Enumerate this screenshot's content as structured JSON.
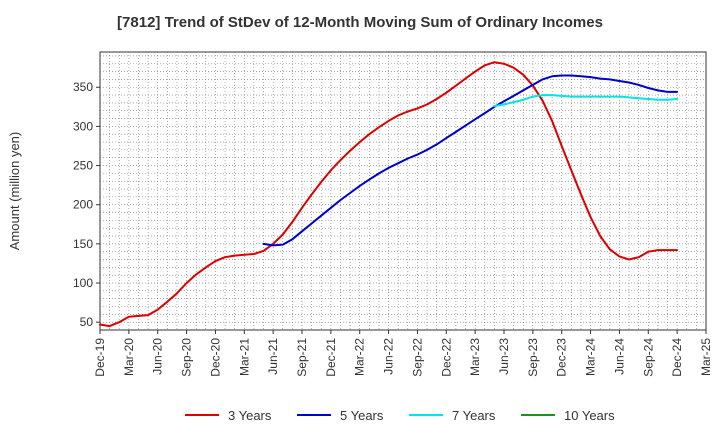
{
  "chart_data": {
    "type": "line",
    "title": "[7812]  Trend of StDev of 12-Month Moving Sum of Ordinary Incomes",
    "xlabel": "",
    "ylabel": "Amount (million yen)",
    "ylim": [
      40,
      395
    ],
    "yticks": [
      50,
      100,
      150,
      200,
      250,
      300,
      350
    ],
    "xlim": [
      "2019-12",
      "2025-03"
    ],
    "x_tick_labels": [
      "Dec-19",
      "Mar-20",
      "Jun-20",
      "Sep-20",
      "Dec-20",
      "Mar-21",
      "Jun-21",
      "Sep-21",
      "Dec-21",
      "Mar-22",
      "Jun-22",
      "Sep-22",
      "Dec-22",
      "Mar-23",
      "Jun-23",
      "Sep-23",
      "Dec-23",
      "Mar-24",
      "Jun-24",
      "Sep-24",
      "Dec-24",
      "Mar-25"
    ],
    "grid": true,
    "legend_position": "bottom",
    "series": [
      {
        "name": "3 Years",
        "color": "#dd0000",
        "points": [
          [
            "2019-12",
            47
          ],
          [
            "2020-01",
            45
          ],
          [
            "2020-02",
            50
          ],
          [
            "2020-03",
            57
          ],
          [
            "2020-04",
            58
          ],
          [
            "2020-05",
            59
          ],
          [
            "2020-06",
            66
          ],
          [
            "2020-07",
            76
          ],
          [
            "2020-08",
            87
          ],
          [
            "2020-09",
            100
          ],
          [
            "2020-10",
            111
          ],
          [
            "2020-11",
            120
          ],
          [
            "2020-12",
            128
          ],
          [
            "2021-01",
            133
          ],
          [
            "2021-02",
            135
          ],
          [
            "2021-03",
            136
          ],
          [
            "2021-04",
            137
          ],
          [
            "2021-05",
            141
          ],
          [
            "2021-06",
            150
          ],
          [
            "2021-07",
            162
          ],
          [
            "2021-08",
            178
          ],
          [
            "2021-09",
            196
          ],
          [
            "2021-10",
            213
          ],
          [
            "2021-11",
            229
          ],
          [
            "2021-12",
            244
          ],
          [
            "2022-01",
            257
          ],
          [
            "2022-02",
            269
          ],
          [
            "2022-03",
            280
          ],
          [
            "2022-04",
            290
          ],
          [
            "2022-05",
            299
          ],
          [
            "2022-06",
            307
          ],
          [
            "2022-07",
            314
          ],
          [
            "2022-08",
            319
          ],
          [
            "2022-09",
            323
          ],
          [
            "2022-10",
            328
          ],
          [
            "2022-11",
            335
          ],
          [
            "2022-12",
            343
          ],
          [
            "2023-01",
            352
          ],
          [
            "2023-02",
            361
          ],
          [
            "2023-03",
            370
          ],
          [
            "2023-04",
            378
          ],
          [
            "2023-05",
            382
          ],
          [
            "2023-06",
            380
          ],
          [
            "2023-07",
            375
          ],
          [
            "2023-08",
            366
          ],
          [
            "2023-09",
            352
          ],
          [
            "2023-10",
            333
          ],
          [
            "2023-11",
            307
          ],
          [
            "2023-12",
            275
          ],
          [
            "2024-01",
            244
          ],
          [
            "2024-02",
            213
          ],
          [
            "2024-03",
            184
          ],
          [
            "2024-04",
            160
          ],
          [
            "2024-05",
            143
          ],
          [
            "2024-06",
            134
          ],
          [
            "2024-07",
            130
          ],
          [
            "2024-08",
            133
          ],
          [
            "2024-09",
            140
          ],
          [
            "2024-10",
            142
          ],
          [
            "2024-11",
            142
          ],
          [
            "2024-12",
            142
          ]
        ]
      },
      {
        "name": "5 Years",
        "color": "#0000cc",
        "points": [
          [
            "2021-05",
            150
          ],
          [
            "2021-06",
            148
          ],
          [
            "2021-07",
            149
          ],
          [
            "2021-08",
            156
          ],
          [
            "2021-09",
            166
          ],
          [
            "2021-10",
            176
          ],
          [
            "2021-11",
            186
          ],
          [
            "2021-12",
            196
          ],
          [
            "2022-01",
            206
          ],
          [
            "2022-02",
            215
          ],
          [
            "2022-03",
            224
          ],
          [
            "2022-04",
            232
          ],
          [
            "2022-05",
            240
          ],
          [
            "2022-06",
            247
          ],
          [
            "2022-07",
            253
          ],
          [
            "2022-08",
            259
          ],
          [
            "2022-09",
            264
          ],
          [
            "2022-10",
            270
          ],
          [
            "2022-11",
            277
          ],
          [
            "2022-12",
            285
          ],
          [
            "2023-01",
            293
          ],
          [
            "2023-02",
            301
          ],
          [
            "2023-03",
            309
          ],
          [
            "2023-04",
            317
          ],
          [
            "2023-05",
            325
          ],
          [
            "2023-06",
            332
          ],
          [
            "2023-07",
            339
          ],
          [
            "2023-08",
            346
          ],
          [
            "2023-09",
            353
          ],
          [
            "2023-10",
            360
          ],
          [
            "2023-11",
            364
          ],
          [
            "2023-12",
            365
          ],
          [
            "2024-01",
            365
          ],
          [
            "2024-02",
            364
          ],
          [
            "2024-03",
            363
          ],
          [
            "2024-04",
            361
          ],
          [
            "2024-05",
            360
          ],
          [
            "2024-06",
            358
          ],
          [
            "2024-07",
            356
          ],
          [
            "2024-08",
            353
          ],
          [
            "2024-09",
            349
          ],
          [
            "2024-10",
            346
          ],
          [
            "2024-11",
            344
          ],
          [
            "2024-12",
            344
          ]
        ]
      },
      {
        "name": "7 Years",
        "color": "#00e5e5",
        "points": [
          [
            "2023-05",
            326
          ],
          [
            "2023-06",
            328
          ],
          [
            "2023-07",
            331
          ],
          [
            "2023-08",
            334
          ],
          [
            "2023-09",
            338
          ],
          [
            "2023-10",
            340
          ],
          [
            "2023-11",
            340
          ],
          [
            "2023-12",
            339
          ],
          [
            "2024-01",
            338
          ],
          [
            "2024-02",
            338
          ],
          [
            "2024-03",
            338
          ],
          [
            "2024-04",
            338
          ],
          [
            "2024-05",
            338
          ],
          [
            "2024-06",
            338
          ],
          [
            "2024-07",
            337
          ],
          [
            "2024-08",
            336
          ],
          [
            "2024-09",
            335
          ],
          [
            "2024-10",
            334
          ],
          [
            "2024-11",
            334
          ],
          [
            "2024-12",
            335
          ]
        ]
      },
      {
        "name": "10 Years",
        "color": "#228b22",
        "points": []
      }
    ]
  }
}
